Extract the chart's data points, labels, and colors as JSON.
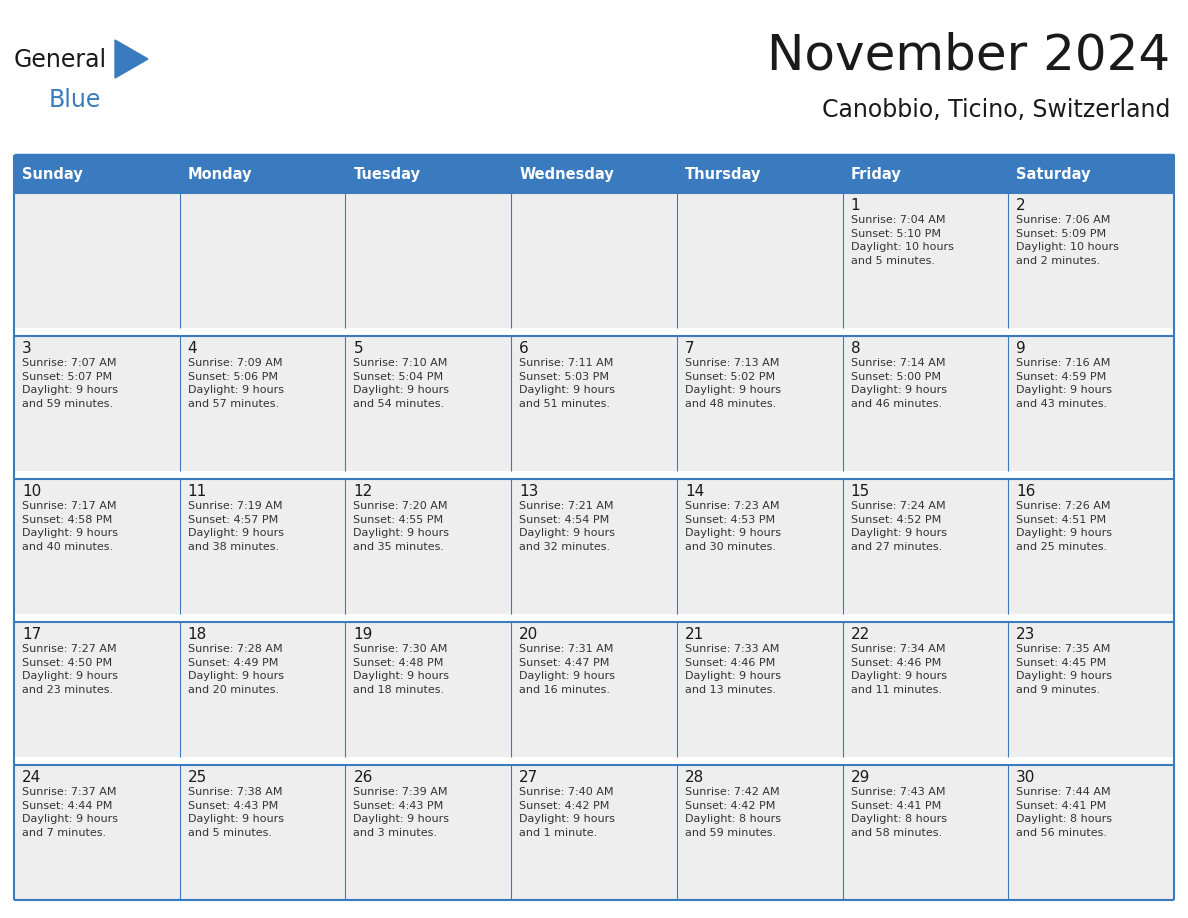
{
  "title": "November 2024",
  "subtitle": "Canobbio, Ticino, Switzerland",
  "days_of_week": [
    "Sunday",
    "Monday",
    "Tuesday",
    "Wednesday",
    "Thursday",
    "Friday",
    "Saturday"
  ],
  "header_bg_color": "#3a7abf",
  "header_text_color": "#ffffff",
  "cell_bg_color": "#eeeeee",
  "row_gap_color": "#ffffff",
  "grid_line_color": "#3a7abf",
  "title_color": "#1a1a1a",
  "subtitle_color": "#1a1a1a",
  "day_number_color": "#1a1a1a",
  "cell_text_color": "#333333",
  "calendar_data": [
    [
      {
        "day": null,
        "text": ""
      },
      {
        "day": null,
        "text": ""
      },
      {
        "day": null,
        "text": ""
      },
      {
        "day": null,
        "text": ""
      },
      {
        "day": null,
        "text": ""
      },
      {
        "day": 1,
        "text": "Sunrise: 7:04 AM\nSunset: 5:10 PM\nDaylight: 10 hours\nand 5 minutes."
      },
      {
        "day": 2,
        "text": "Sunrise: 7:06 AM\nSunset: 5:09 PM\nDaylight: 10 hours\nand 2 minutes."
      }
    ],
    [
      {
        "day": 3,
        "text": "Sunrise: 7:07 AM\nSunset: 5:07 PM\nDaylight: 9 hours\nand 59 minutes."
      },
      {
        "day": 4,
        "text": "Sunrise: 7:09 AM\nSunset: 5:06 PM\nDaylight: 9 hours\nand 57 minutes."
      },
      {
        "day": 5,
        "text": "Sunrise: 7:10 AM\nSunset: 5:04 PM\nDaylight: 9 hours\nand 54 minutes."
      },
      {
        "day": 6,
        "text": "Sunrise: 7:11 AM\nSunset: 5:03 PM\nDaylight: 9 hours\nand 51 minutes."
      },
      {
        "day": 7,
        "text": "Sunrise: 7:13 AM\nSunset: 5:02 PM\nDaylight: 9 hours\nand 48 minutes."
      },
      {
        "day": 8,
        "text": "Sunrise: 7:14 AM\nSunset: 5:00 PM\nDaylight: 9 hours\nand 46 minutes."
      },
      {
        "day": 9,
        "text": "Sunrise: 7:16 AM\nSunset: 4:59 PM\nDaylight: 9 hours\nand 43 minutes."
      }
    ],
    [
      {
        "day": 10,
        "text": "Sunrise: 7:17 AM\nSunset: 4:58 PM\nDaylight: 9 hours\nand 40 minutes."
      },
      {
        "day": 11,
        "text": "Sunrise: 7:19 AM\nSunset: 4:57 PM\nDaylight: 9 hours\nand 38 minutes."
      },
      {
        "day": 12,
        "text": "Sunrise: 7:20 AM\nSunset: 4:55 PM\nDaylight: 9 hours\nand 35 minutes."
      },
      {
        "day": 13,
        "text": "Sunrise: 7:21 AM\nSunset: 4:54 PM\nDaylight: 9 hours\nand 32 minutes."
      },
      {
        "day": 14,
        "text": "Sunrise: 7:23 AM\nSunset: 4:53 PM\nDaylight: 9 hours\nand 30 minutes."
      },
      {
        "day": 15,
        "text": "Sunrise: 7:24 AM\nSunset: 4:52 PM\nDaylight: 9 hours\nand 27 minutes."
      },
      {
        "day": 16,
        "text": "Sunrise: 7:26 AM\nSunset: 4:51 PM\nDaylight: 9 hours\nand 25 minutes."
      }
    ],
    [
      {
        "day": 17,
        "text": "Sunrise: 7:27 AM\nSunset: 4:50 PM\nDaylight: 9 hours\nand 23 minutes."
      },
      {
        "day": 18,
        "text": "Sunrise: 7:28 AM\nSunset: 4:49 PM\nDaylight: 9 hours\nand 20 minutes."
      },
      {
        "day": 19,
        "text": "Sunrise: 7:30 AM\nSunset: 4:48 PM\nDaylight: 9 hours\nand 18 minutes."
      },
      {
        "day": 20,
        "text": "Sunrise: 7:31 AM\nSunset: 4:47 PM\nDaylight: 9 hours\nand 16 minutes."
      },
      {
        "day": 21,
        "text": "Sunrise: 7:33 AM\nSunset: 4:46 PM\nDaylight: 9 hours\nand 13 minutes."
      },
      {
        "day": 22,
        "text": "Sunrise: 7:34 AM\nSunset: 4:46 PM\nDaylight: 9 hours\nand 11 minutes."
      },
      {
        "day": 23,
        "text": "Sunrise: 7:35 AM\nSunset: 4:45 PM\nDaylight: 9 hours\nand 9 minutes."
      }
    ],
    [
      {
        "day": 24,
        "text": "Sunrise: 7:37 AM\nSunset: 4:44 PM\nDaylight: 9 hours\nand 7 minutes."
      },
      {
        "day": 25,
        "text": "Sunrise: 7:38 AM\nSunset: 4:43 PM\nDaylight: 9 hours\nand 5 minutes."
      },
      {
        "day": 26,
        "text": "Sunrise: 7:39 AM\nSunset: 4:43 PM\nDaylight: 9 hours\nand 3 minutes."
      },
      {
        "day": 27,
        "text": "Sunrise: 7:40 AM\nSunset: 4:42 PM\nDaylight: 9 hours\nand 1 minute."
      },
      {
        "day": 28,
        "text": "Sunrise: 7:42 AM\nSunset: 4:42 PM\nDaylight: 8 hours\nand 59 minutes."
      },
      {
        "day": 29,
        "text": "Sunrise: 7:43 AM\nSunset: 4:41 PM\nDaylight: 8 hours\nand 58 minutes."
      },
      {
        "day": 30,
        "text": "Sunrise: 7:44 AM\nSunset: 4:41 PM\nDaylight: 8 hours\nand 56 minutes."
      }
    ]
  ],
  "logo_general_color": "#1a1a1a",
  "logo_blue_color": "#3a7abf",
  "logo_triangle_color": "#3a7abf",
  "fig_width": 11.88,
  "fig_height": 9.18,
  "fig_dpi": 100
}
